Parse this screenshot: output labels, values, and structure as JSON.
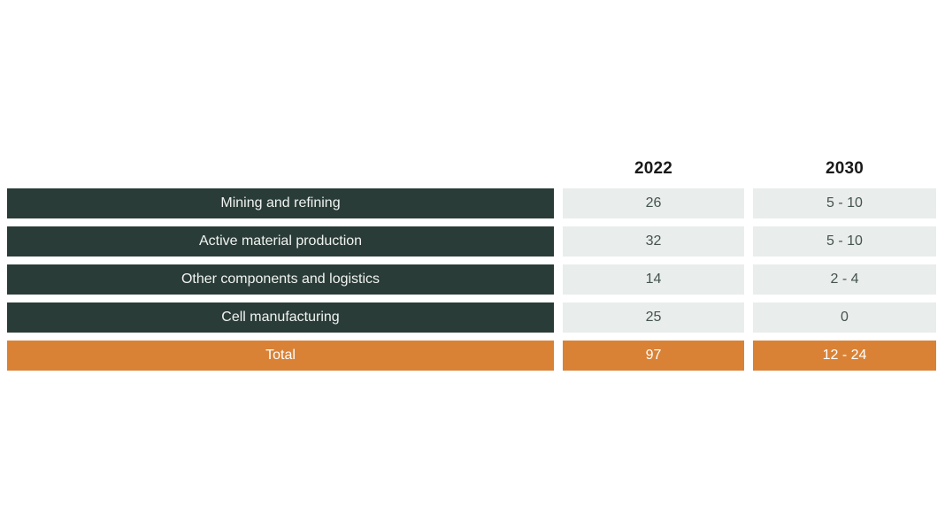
{
  "colors": {
    "dark_green": "#2a3c37",
    "light_gray": "#e9edeb",
    "orange": "#d98236"
  },
  "table": {
    "headers": {
      "col2022": "2022",
      "col2030": "2030"
    },
    "rows": [
      {
        "label": "Mining and refining",
        "v2022": "26",
        "v2030": "5 - 10"
      },
      {
        "label": "Active material production",
        "v2022": "32",
        "v2030": "5 - 10"
      },
      {
        "label": "Other components and logistics",
        "v2022": "14",
        "v2030": "2 - 4"
      },
      {
        "label": "Cell manufacturing",
        "v2022": "25",
        "v2030": "0"
      }
    ],
    "total": {
      "label": "Total",
      "v2022": "97",
      "v2030": "12 - 24"
    }
  },
  "chart_data": {
    "type": "table",
    "columns": [
      "",
      "2022",
      "2030"
    ],
    "rows": [
      [
        "Mining and refining",
        26,
        "5 - 10"
      ],
      [
        "Active material production",
        32,
        "5 - 10"
      ],
      [
        "Other components and logistics",
        14,
        "2 - 4"
      ],
      [
        "Cell manufacturing",
        25,
        "0"
      ],
      [
        "Total",
        97,
        "12 - 24"
      ]
    ],
    "notes": "Label column dark green, value cells light gray, Total row orange"
  }
}
